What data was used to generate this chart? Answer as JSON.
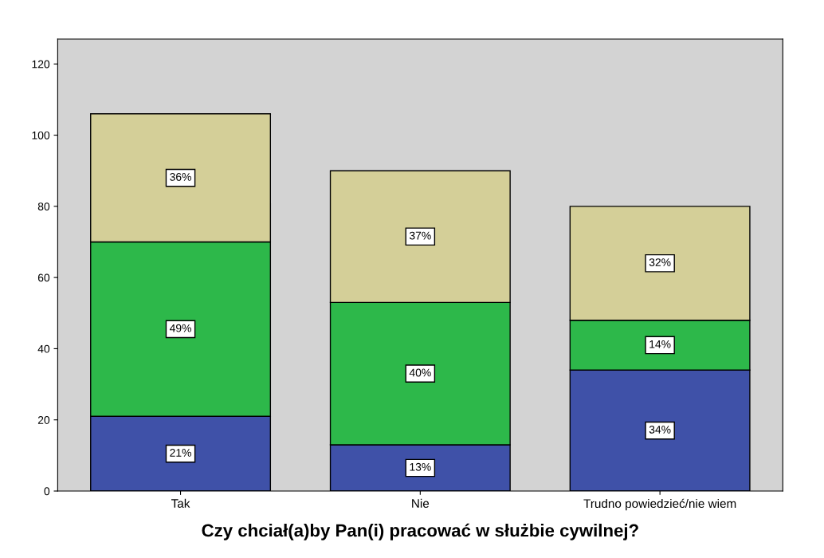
{
  "chart_data": {
    "type": "bar",
    "stacked": true,
    "xlabel": "Czy chciał(a)by Pan(i) pracować w służbie cywilnej?",
    "categories": [
      "Tak",
      "Nie",
      "Trudno powiedzieć/nie wiem"
    ],
    "series": [
      {
        "color": "#3f51a8",
        "values": [
          21,
          13,
          34
        ],
        "value_labels": [
          "21%",
          "13%",
          "34%"
        ]
      },
      {
        "color": "#2db84a",
        "values": [
          49,
          40,
          14
        ],
        "value_labels": [
          "49%",
          "40%",
          "14%"
        ]
      },
      {
        "color": "#d4cf98",
        "values": [
          36,
          37,
          32
        ],
        "value_labels": [
          "36%",
          "37%",
          "32%"
        ]
      }
    ],
    "ylim": [
      0,
      127
    ],
    "yticks": [
      0,
      20,
      40,
      60,
      80,
      100,
      120
    ],
    "grid": false
  }
}
